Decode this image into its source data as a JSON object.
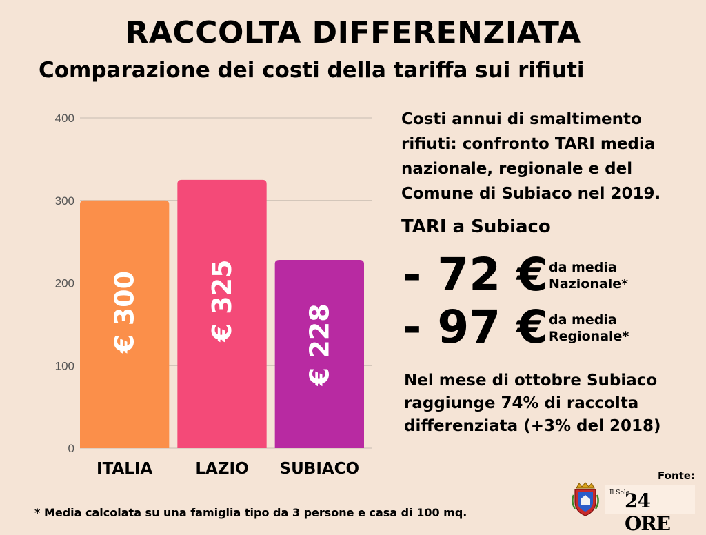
{
  "title": "RACCOLTA DIFFERENZIATA",
  "subtitle": "Comparazione dei costi della tariffa sui rifiuti",
  "chart_data": {
    "type": "bar",
    "categories": [
      "ITALIA",
      "LAZIO",
      "SUBIACO"
    ],
    "values": [
      300,
      325,
      228
    ],
    "data_labels": [
      "€ 300",
      "€ 325",
      "€ 228"
    ],
    "colors": [
      "#fb8f4a",
      "#f44a78",
      "#b82aa2"
    ],
    "ylim": [
      0,
      400
    ],
    "yticks": [
      0,
      100,
      200,
      300,
      400
    ],
    "grid": true,
    "xlabel": "",
    "ylabel": ""
  },
  "side": {
    "description": "Costi annui di smaltimento rifiuti: confronto TARI media nazionale, regionale e del Comune di Subiaco nel 2019.",
    "tari_title": "TARI a Subiaco",
    "diff_nazionale": {
      "value": "- 72 €",
      "note_line1": "da media",
      "note_line2": "Nazionale*"
    },
    "diff_regionale": {
      "value": "- 97 €",
      "note_line1": "da media",
      "note_line2": "Regionale*"
    },
    "closing": "Nel mese di ottobre Subiaco raggiunge 74% di raccolta differenziata (+3% del 2018)"
  },
  "footnote": "* Media calcolata su una famiglia tipo da 3 persone e casa di 100 mq.",
  "source": {
    "label": "Fonte:",
    "logo_small": "Il Sole",
    "logo_big": "24 ORE",
    "crest_icon": "subiaco-coat-of-arms-icon"
  }
}
